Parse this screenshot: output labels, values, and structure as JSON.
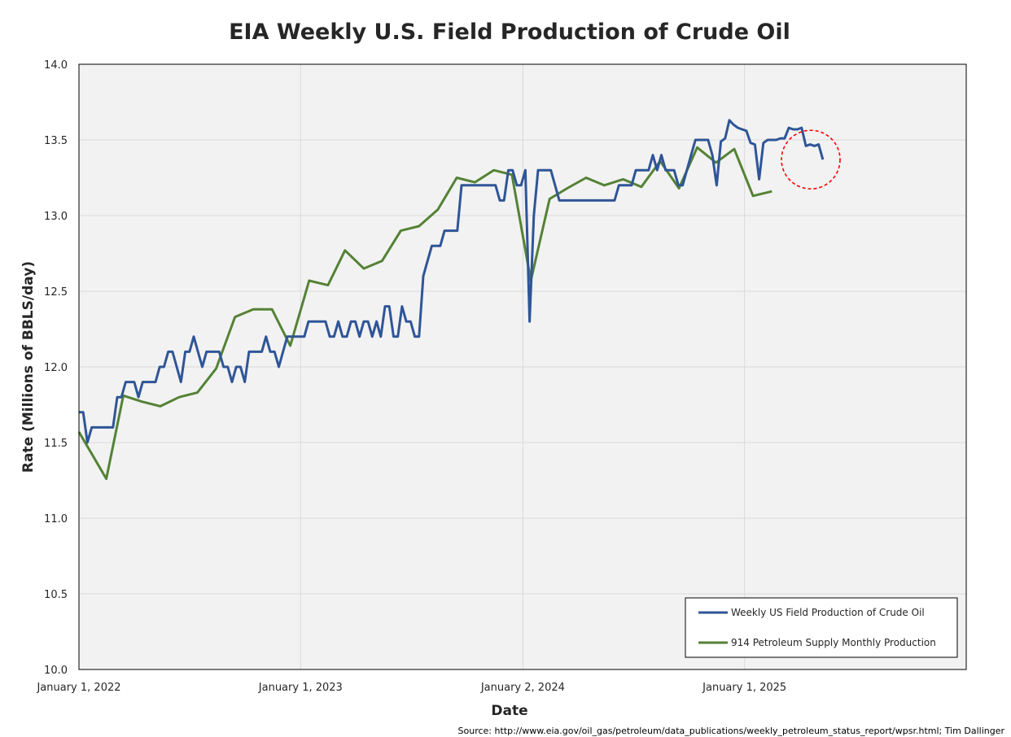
{
  "chart_data": {
    "type": "line",
    "title": "EIA Weekly U.S. Field Production of Crude Oil",
    "xlabel": "Date",
    "ylabel": "Rate (Millions of BBLS/day)",
    "source": "Source: http://www.eia.gov/oil_gas/petroleum/data_publications/weekly_petroleum_status_report/wpsr.html; Tim Dallinger",
    "ylim": [
      10.0,
      14.0
    ],
    "xlim": [
      "2022-01-01",
      "2026-01-01"
    ],
    "yticks": [
      "10.0",
      "10.5",
      "11.0",
      "11.5",
      "12.0",
      "12.5",
      "13.0",
      "13.5",
      "14.0"
    ],
    "xticks": [
      {
        "label": "January 1, 2022",
        "date": "2022-01-01"
      },
      {
        "label": "January 1, 2023",
        "date": "2023-01-01"
      },
      {
        "label": "January 2, 2024",
        "date": "2024-01-02"
      },
      {
        "label": "January 1, 2025",
        "date": "2025-01-01"
      }
    ],
    "grid": true,
    "legend_position": "bottom-right",
    "colors": {
      "weekly": "#2F5597",
      "monthly": "#548235",
      "plot_bg": "#F2F2F2",
      "grid": "#D9D9D9",
      "highlight": "#FF0000"
    },
    "annotation": {
      "type": "dashed-circle",
      "x": "2025-04-20",
      "y": 13.37,
      "color": "#FF0000"
    },
    "series": [
      {
        "name": "Weekly US Field Production of Crude Oil",
        "color": "#2F5597",
        "points": [
          [
            "2022-01-01",
            11.7
          ],
          [
            "2022-01-08",
            11.7
          ],
          [
            "2022-01-15",
            11.5
          ],
          [
            "2022-01-22",
            11.6
          ],
          [
            "2022-01-29",
            11.6
          ],
          [
            "2022-02-05",
            11.6
          ],
          [
            "2022-02-12",
            11.6
          ],
          [
            "2022-02-19",
            11.6
          ],
          [
            "2022-02-26",
            11.6
          ],
          [
            "2022-03-05",
            11.8
          ],
          [
            "2022-03-12",
            11.8
          ],
          [
            "2022-03-19",
            11.9
          ],
          [
            "2022-03-26",
            11.9
          ],
          [
            "2022-04-02",
            11.9
          ],
          [
            "2022-04-09",
            11.8
          ],
          [
            "2022-04-16",
            11.9
          ],
          [
            "2022-04-23",
            11.9
          ],
          [
            "2022-04-30",
            11.9
          ],
          [
            "2022-05-07",
            11.9
          ],
          [
            "2022-05-14",
            12.0
          ],
          [
            "2022-05-21",
            12.0
          ],
          [
            "2022-05-28",
            12.1
          ],
          [
            "2022-06-04",
            12.1
          ],
          [
            "2022-06-11",
            12.0
          ],
          [
            "2022-06-18",
            11.9
          ],
          [
            "2022-06-25",
            12.1
          ],
          [
            "2022-07-02",
            12.1
          ],
          [
            "2022-07-09",
            12.2
          ],
          [
            "2022-07-16",
            12.1
          ],
          [
            "2022-07-23",
            12.0
          ],
          [
            "2022-07-30",
            12.1
          ],
          [
            "2022-08-06",
            12.1
          ],
          [
            "2022-08-13",
            12.1
          ],
          [
            "2022-08-20",
            12.1
          ],
          [
            "2022-08-27",
            12.0
          ],
          [
            "2022-09-03",
            12.0
          ],
          [
            "2022-09-10",
            11.9
          ],
          [
            "2022-09-17",
            12.0
          ],
          [
            "2022-09-24",
            12.0
          ],
          [
            "2022-10-01",
            11.9
          ],
          [
            "2022-10-08",
            12.1
          ],
          [
            "2022-10-15",
            12.1
          ],
          [
            "2022-10-22",
            12.1
          ],
          [
            "2022-10-29",
            12.1
          ],
          [
            "2022-11-05",
            12.2
          ],
          [
            "2022-11-12",
            12.1
          ],
          [
            "2022-11-19",
            12.1
          ],
          [
            "2022-11-26",
            12.0
          ],
          [
            "2022-12-03",
            12.1
          ],
          [
            "2022-12-10",
            12.2
          ],
          [
            "2022-12-17",
            12.2
          ],
          [
            "2022-12-24",
            12.2
          ],
          [
            "2022-12-31",
            12.2
          ],
          [
            "2023-01-07",
            12.2
          ],
          [
            "2023-01-14",
            12.3
          ],
          [
            "2023-01-21",
            12.3
          ],
          [
            "2023-01-28",
            12.3
          ],
          [
            "2023-02-04",
            12.3
          ],
          [
            "2023-02-11",
            12.3
          ],
          [
            "2023-02-18",
            12.2
          ],
          [
            "2023-02-25",
            12.2
          ],
          [
            "2023-03-04",
            12.3
          ],
          [
            "2023-03-11",
            12.2
          ],
          [
            "2023-03-18",
            12.2
          ],
          [
            "2023-03-25",
            12.3
          ],
          [
            "2023-04-01",
            12.3
          ],
          [
            "2023-04-08",
            12.2
          ],
          [
            "2023-04-15",
            12.3
          ],
          [
            "2023-04-22",
            12.3
          ],
          [
            "2023-04-29",
            12.2
          ],
          [
            "2023-05-06",
            12.3
          ],
          [
            "2023-05-13",
            12.2
          ],
          [
            "2023-05-20",
            12.4
          ],
          [
            "2023-05-27",
            12.4
          ],
          [
            "2023-06-03",
            12.2
          ],
          [
            "2023-06-10",
            12.2
          ],
          [
            "2023-06-17",
            12.4
          ],
          [
            "2023-06-24",
            12.3
          ],
          [
            "2023-07-01",
            12.3
          ],
          [
            "2023-07-08",
            12.2
          ],
          [
            "2023-07-15",
            12.2
          ],
          [
            "2023-07-22",
            12.6
          ],
          [
            "2023-07-29",
            12.7
          ],
          [
            "2023-08-05",
            12.8
          ],
          [
            "2023-08-12",
            12.8
          ],
          [
            "2023-08-19",
            12.8
          ],
          [
            "2023-08-26",
            12.9
          ],
          [
            "2023-09-02",
            12.9
          ],
          [
            "2023-09-09",
            12.9
          ],
          [
            "2023-09-16",
            12.9
          ],
          [
            "2023-09-23",
            13.2
          ],
          [
            "2023-09-30",
            13.2
          ],
          [
            "2023-10-07",
            13.2
          ],
          [
            "2023-10-14",
            13.2
          ],
          [
            "2023-10-21",
            13.2
          ],
          [
            "2023-10-28",
            13.2
          ],
          [
            "2023-11-04",
            13.2
          ],
          [
            "2023-11-11",
            13.2
          ],
          [
            "2023-11-18",
            13.2
          ],
          [
            "2023-11-25",
            13.1
          ],
          [
            "2023-12-02",
            13.1
          ],
          [
            "2023-12-09",
            13.3
          ],
          [
            "2023-12-16",
            13.3
          ],
          [
            "2023-12-23",
            13.2
          ],
          [
            "2023-12-30",
            13.2
          ],
          [
            "2024-01-06",
            13.3
          ],
          [
            "2024-01-13",
            12.3
          ],
          [
            "2024-01-20",
            13.0
          ],
          [
            "2024-01-27",
            13.3
          ],
          [
            "2024-02-03",
            13.3
          ],
          [
            "2024-02-10",
            13.3
          ],
          [
            "2024-02-17",
            13.3
          ],
          [
            "2024-02-24",
            13.2
          ],
          [
            "2024-03-02",
            13.1
          ],
          [
            "2024-03-09",
            13.1
          ],
          [
            "2024-03-16",
            13.1
          ],
          [
            "2024-03-23",
            13.1
          ],
          [
            "2024-03-30",
            13.1
          ],
          [
            "2024-04-06",
            13.1
          ],
          [
            "2024-04-13",
            13.1
          ],
          [
            "2024-04-20",
            13.1
          ],
          [
            "2024-04-27",
            13.1
          ],
          [
            "2024-05-04",
            13.1
          ],
          [
            "2024-05-11",
            13.1
          ],
          [
            "2024-05-18",
            13.1
          ],
          [
            "2024-05-25",
            13.1
          ],
          [
            "2024-06-01",
            13.1
          ],
          [
            "2024-06-08",
            13.2
          ],
          [
            "2024-06-15",
            13.2
          ],
          [
            "2024-06-22",
            13.2
          ],
          [
            "2024-06-29",
            13.2
          ],
          [
            "2024-07-06",
            13.3
          ],
          [
            "2024-07-13",
            13.3
          ],
          [
            "2024-07-20",
            13.3
          ],
          [
            "2024-07-27",
            13.3
          ],
          [
            "2024-08-03",
            13.4
          ],
          [
            "2024-08-10",
            13.3
          ],
          [
            "2024-08-17",
            13.4
          ],
          [
            "2024-08-24",
            13.3
          ],
          [
            "2024-08-31",
            13.3
          ],
          [
            "2024-09-07",
            13.3
          ],
          [
            "2024-09-14",
            13.2
          ],
          [
            "2024-09-21",
            13.2
          ],
          [
            "2024-09-28",
            13.3
          ],
          [
            "2024-10-05",
            13.4
          ],
          [
            "2024-10-12",
            13.5
          ],
          [
            "2024-10-19",
            13.5
          ],
          [
            "2024-10-26",
            13.5
          ],
          [
            "2024-11-02",
            13.5
          ],
          [
            "2024-11-09",
            13.4
          ],
          [
            "2024-11-16",
            13.2
          ],
          [
            "2024-11-23",
            13.49
          ],
          [
            "2024-11-30",
            13.51
          ],
          [
            "2024-12-07",
            13.63
          ],
          [
            "2024-12-14",
            13.6
          ],
          [
            "2024-12-21",
            13.58
          ],
          [
            "2024-12-28",
            13.57
          ],
          [
            "2025-01-04",
            13.56
          ],
          [
            "2025-01-11",
            13.48
          ],
          [
            "2025-01-18",
            13.47
          ],
          [
            "2025-01-25",
            13.24
          ],
          [
            "2025-02-01",
            13.48
          ],
          [
            "2025-02-08",
            13.5
          ],
          [
            "2025-02-15",
            13.5
          ],
          [
            "2025-02-22",
            13.5
          ],
          [
            "2025-03-01",
            13.51
          ],
          [
            "2025-03-08",
            13.51
          ],
          [
            "2025-03-15",
            13.58
          ],
          [
            "2025-03-22",
            13.57
          ],
          [
            "2025-03-29",
            13.57
          ],
          [
            "2025-04-05",
            13.58
          ],
          [
            "2025-04-12",
            13.46
          ],
          [
            "2025-04-19",
            13.47
          ],
          [
            "2025-04-26",
            13.46
          ],
          [
            "2025-05-03",
            13.47
          ],
          [
            "2025-05-10",
            13.37
          ]
        ]
      },
      {
        "name": "914 Petroleum Supply Monthly Production",
        "color": "#548235",
        "points": [
          [
            "2022-01-01",
            11.57
          ],
          [
            "2022-02-15",
            11.26
          ],
          [
            "2022-03-15",
            11.81
          ],
          [
            "2022-04-15",
            11.77
          ],
          [
            "2022-05-15",
            11.74
          ],
          [
            "2022-06-15",
            11.8
          ],
          [
            "2022-07-15",
            11.83
          ],
          [
            "2022-08-15",
            11.99
          ],
          [
            "2022-09-15",
            12.33
          ],
          [
            "2022-10-15",
            12.38
          ],
          [
            "2022-11-15",
            12.38
          ],
          [
            "2022-12-15",
            12.14
          ],
          [
            "2023-01-15",
            12.57
          ],
          [
            "2023-02-15",
            12.54
          ],
          [
            "2023-03-15",
            12.77
          ],
          [
            "2023-04-15",
            12.65
          ],
          [
            "2023-05-15",
            12.7
          ],
          [
            "2023-06-15",
            12.9
          ],
          [
            "2023-07-15",
            12.93
          ],
          [
            "2023-08-15",
            13.04
          ],
          [
            "2023-09-15",
            13.25
          ],
          [
            "2023-10-15",
            13.22
          ],
          [
            "2023-11-15",
            13.3
          ],
          [
            "2023-12-15",
            13.27
          ],
          [
            "2024-01-15",
            12.57
          ],
          [
            "2024-02-15",
            13.11
          ],
          [
            "2024-03-15",
            13.18
          ],
          [
            "2024-04-15",
            13.25
          ],
          [
            "2024-05-15",
            13.2
          ],
          [
            "2024-06-15",
            13.24
          ],
          [
            "2024-07-15",
            13.19
          ],
          [
            "2024-08-15",
            13.36
          ],
          [
            "2024-09-15",
            13.18
          ],
          [
            "2024-10-15",
            13.45
          ],
          [
            "2024-11-15",
            13.35
          ],
          [
            "2024-12-15",
            13.44
          ],
          [
            "2025-01-15",
            13.13
          ],
          [
            "2025-02-15",
            13.16
          ]
        ]
      }
    ]
  }
}
